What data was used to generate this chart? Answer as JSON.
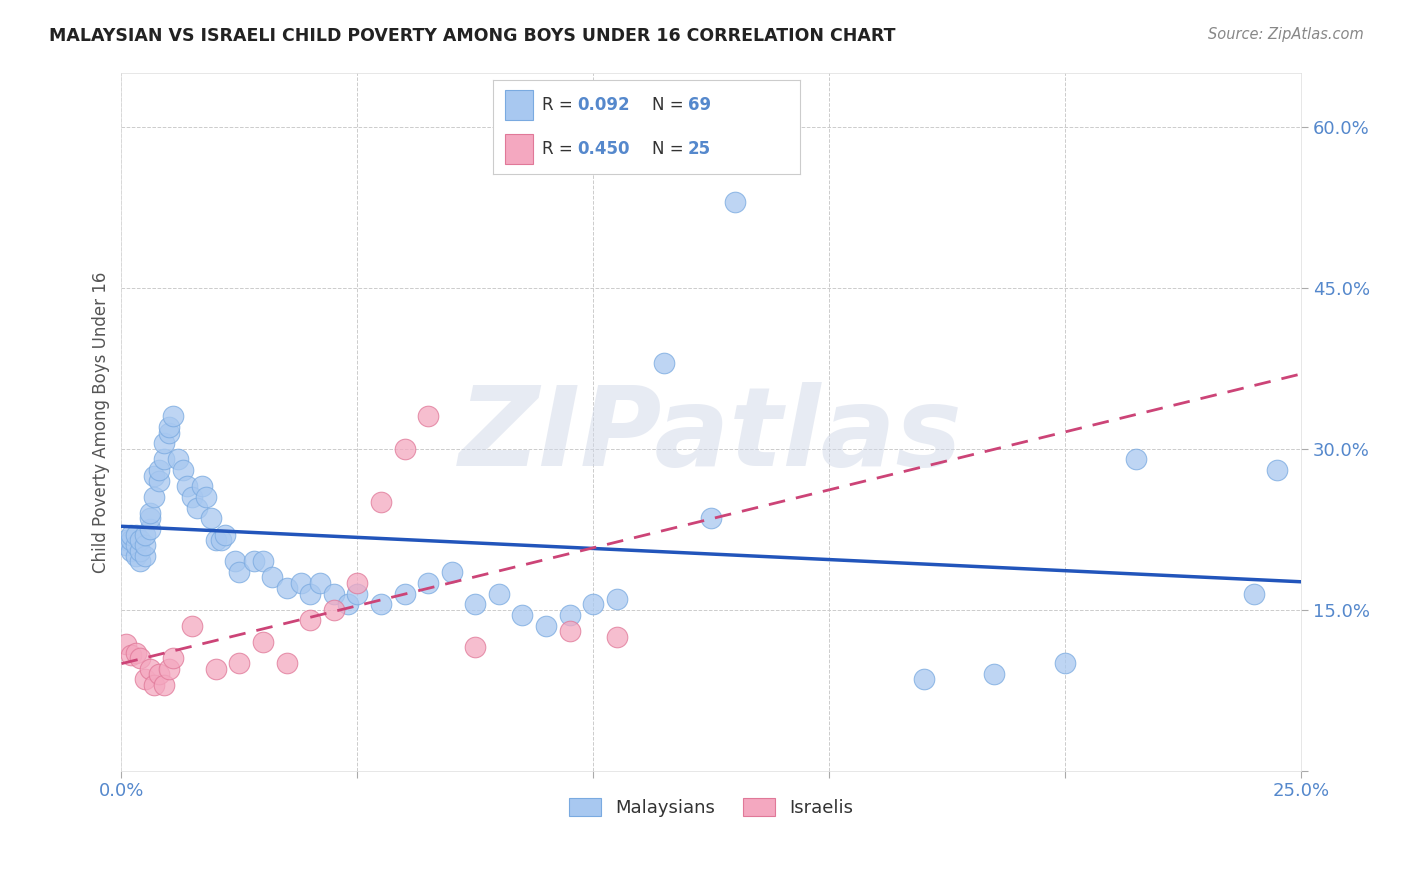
{
  "title": "MALAYSIAN VS ISRAELI CHILD POVERTY AMONG BOYS UNDER 16 CORRELATION CHART",
  "source": "Source: ZipAtlas.com",
  "ylabel": "Child Poverty Among Boys Under 16",
  "xlim": [
    0.0,
    0.25
  ],
  "ylim": [
    0.0,
    0.65
  ],
  "xticks": [
    0.0,
    0.05,
    0.1,
    0.15,
    0.2,
    0.25
  ],
  "yticks": [
    0.0,
    0.15,
    0.3,
    0.45,
    0.6
  ],
  "xtick_labels": [
    "0.0%",
    "",
    "",
    "",
    "",
    "25.0%"
  ],
  "ytick_labels": [
    "",
    "15.0%",
    "30.0%",
    "45.0%",
    "60.0%"
  ],
  "legend_bottom_1": "Malaysians",
  "legend_bottom_2": "Israelis",
  "watermark": "ZIPatlas",
  "malaysian_color": "#a8c8f0",
  "israeli_color": "#f4a8c0",
  "trend_blue": "#2255bb",
  "trend_pink": "#cc4477",
  "mal_R": "0.092",
  "mal_N": "69",
  "isr_R": "0.450",
  "isr_N": "25",
  "malaysians_x": [
    0.001,
    0.001,
    0.002,
    0.002,
    0.002,
    0.003,
    0.003,
    0.003,
    0.004,
    0.004,
    0.004,
    0.005,
    0.005,
    0.005,
    0.006,
    0.006,
    0.006,
    0.007,
    0.007,
    0.008,
    0.008,
    0.009,
    0.009,
    0.01,
    0.01,
    0.011,
    0.012,
    0.013,
    0.014,
    0.015,
    0.016,
    0.017,
    0.018,
    0.019,
    0.02,
    0.021,
    0.022,
    0.024,
    0.025,
    0.028,
    0.03,
    0.032,
    0.035,
    0.038,
    0.04,
    0.042,
    0.045,
    0.048,
    0.05,
    0.055,
    0.06,
    0.065,
    0.07,
    0.075,
    0.08,
    0.085,
    0.09,
    0.095,
    0.1,
    0.105,
    0.115,
    0.125,
    0.13,
    0.17,
    0.185,
    0.2,
    0.215,
    0.24,
    0.245
  ],
  "malaysians_y": [
    0.215,
    0.21,
    0.205,
    0.215,
    0.22,
    0.2,
    0.21,
    0.22,
    0.195,
    0.205,
    0.215,
    0.2,
    0.21,
    0.22,
    0.225,
    0.235,
    0.24,
    0.255,
    0.275,
    0.27,
    0.28,
    0.29,
    0.305,
    0.315,
    0.32,
    0.33,
    0.29,
    0.28,
    0.265,
    0.255,
    0.245,
    0.265,
    0.255,
    0.235,
    0.215,
    0.215,
    0.22,
    0.195,
    0.185,
    0.195,
    0.195,
    0.18,
    0.17,
    0.175,
    0.165,
    0.175,
    0.165,
    0.155,
    0.165,
    0.155,
    0.165,
    0.175,
    0.185,
    0.155,
    0.165,
    0.145,
    0.135,
    0.145,
    0.155,
    0.16,
    0.38,
    0.235,
    0.53,
    0.085,
    0.09,
    0.1,
    0.29,
    0.165,
    0.28
  ],
  "israelis_x": [
    0.001,
    0.002,
    0.003,
    0.004,
    0.005,
    0.006,
    0.007,
    0.008,
    0.009,
    0.01,
    0.011,
    0.015,
    0.02,
    0.025,
    0.03,
    0.035,
    0.04,
    0.045,
    0.05,
    0.055,
    0.06,
    0.065,
    0.075,
    0.095,
    0.105
  ],
  "israelis_y": [
    0.118,
    0.108,
    0.11,
    0.105,
    0.085,
    0.095,
    0.08,
    0.09,
    0.08,
    0.095,
    0.105,
    0.135,
    0.095,
    0.1,
    0.12,
    0.1,
    0.14,
    0.15,
    0.175,
    0.25,
    0.3,
    0.33,
    0.115,
    0.13,
    0.125
  ]
}
